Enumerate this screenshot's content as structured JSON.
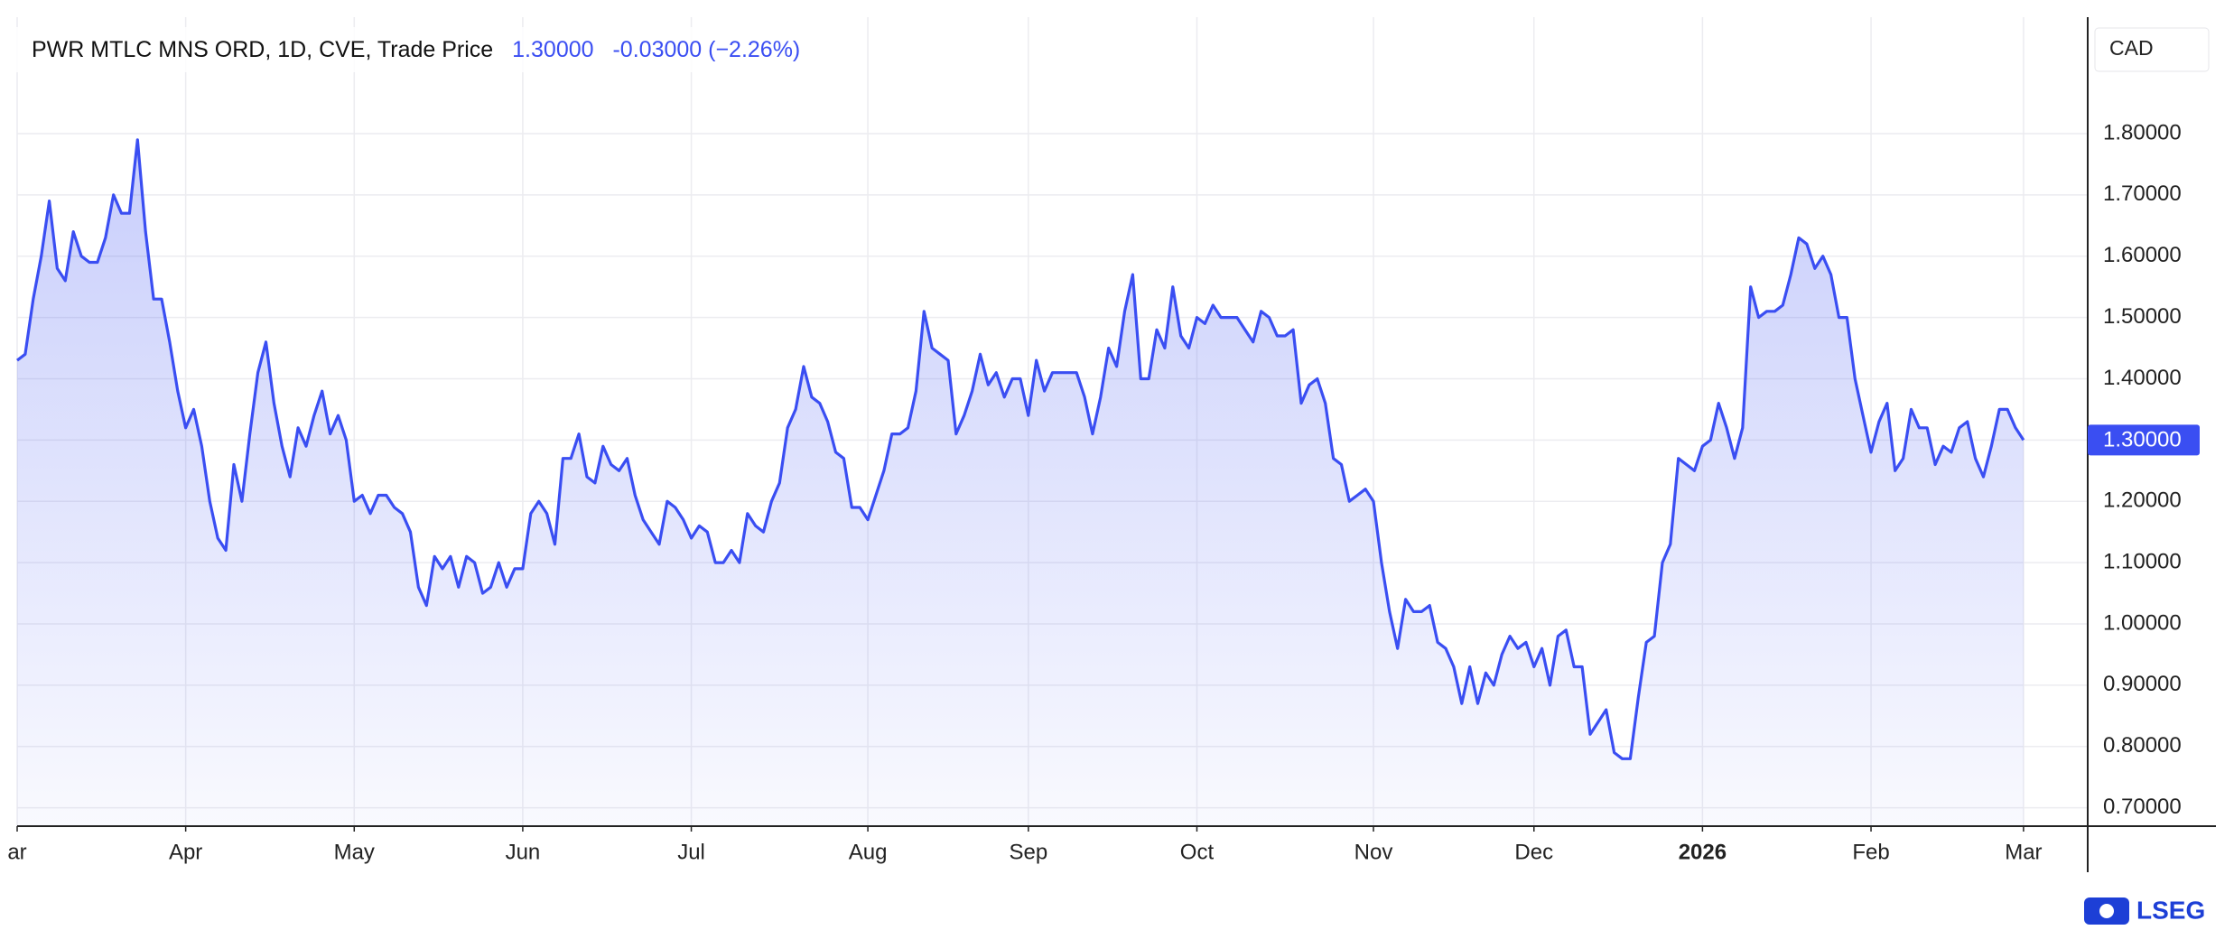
{
  "chart_data": {
    "type": "area",
    "header": {
      "instrument": "PWR MTLC MNS ORD, 1D, CVE, Trade Price",
      "price": "1.30000",
      "change": "-0.03000 (−2.26%)"
    },
    "currency": "CAD",
    "brand": "LSEG",
    "last_price": {
      "value": 1.3,
      "label": "1.30000"
    },
    "color": "#3a4ef2",
    "values": [
      1.43,
      1.44,
      1.53,
      1.6,
      1.69,
      1.58,
      1.56,
      1.64,
      1.6,
      1.59,
      1.59,
      1.63,
      1.7,
      1.67,
      1.67,
      1.79,
      1.64,
      1.53,
      1.53,
      1.46,
      1.38,
      1.32,
      1.35,
      1.29,
      1.2,
      1.14,
      1.12,
      1.26,
      1.2,
      1.31,
      1.41,
      1.46,
      1.36,
      1.29,
      1.24,
      1.32,
      1.29,
      1.34,
      1.38,
      1.31,
      1.34,
      1.3,
      1.2,
      1.21,
      1.18,
      1.21,
      1.21,
      1.19,
      1.18,
      1.15,
      1.06,
      1.03,
      1.11,
      1.09,
      1.11,
      1.06,
      1.11,
      1.1,
      1.05,
      1.06,
      1.1,
      1.06,
      1.09,
      1.09,
      1.18,
      1.2,
      1.18,
      1.13,
      1.27,
      1.27,
      1.31,
      1.24,
      1.23,
      1.29,
      1.26,
      1.25,
      1.27,
      1.21,
      1.17,
      1.15,
      1.13,
      1.2,
      1.19,
      1.17,
      1.14,
      1.16,
      1.15,
      1.1,
      1.1,
      1.12,
      1.1,
      1.18,
      1.16,
      1.15,
      1.2,
      1.23,
      1.32,
      1.35,
      1.42,
      1.37,
      1.36,
      1.33,
      1.28,
      1.27,
      1.19,
      1.19,
      1.17,
      1.21,
      1.25,
      1.31,
      1.31,
      1.32,
      1.38,
      1.51,
      1.45,
      1.44,
      1.43,
      1.31,
      1.34,
      1.38,
      1.44,
      1.39,
      1.41,
      1.37,
      1.4,
      1.4,
      1.34,
      1.43,
      1.38,
      1.41,
      1.41,
      1.41,
      1.41,
      1.37,
      1.31,
      1.37,
      1.45,
      1.42,
      1.51,
      1.57,
      1.4,
      1.4,
      1.48,
      1.45,
      1.55,
      1.47,
      1.45,
      1.5,
      1.49,
      1.52,
      1.5,
      1.5,
      1.5,
      1.48,
      1.46,
      1.51,
      1.5,
      1.47,
      1.47,
      1.48,
      1.36,
      1.39,
      1.4,
      1.36,
      1.27,
      1.26,
      1.2,
      1.21,
      1.22,
      1.2,
      1.1,
      1.02,
      0.96,
      1.04,
      1.02,
      1.02,
      1.03,
      0.97,
      0.96,
      0.93,
      0.87,
      0.93,
      0.87,
      0.92,
      0.9,
      0.95,
      0.98,
      0.96,
      0.97,
      0.93,
      0.96,
      0.9,
      0.98,
      0.99,
      0.93,
      0.93,
      0.82,
      0.84,
      0.86,
      0.79,
      0.78,
      0.78,
      0.88,
      0.97,
      0.98,
      1.1,
      1.13,
      1.27,
      1.26,
      1.25,
      1.29,
      1.3,
      1.36,
      1.32,
      1.27,
      1.32,
      1.55,
      1.5,
      1.51,
      1.51,
      1.52,
      1.57,
      1.63,
      1.62,
      1.58,
      1.6,
      1.57,
      1.5,
      1.5,
      1.4,
      1.34,
      1.28,
      1.33,
      1.36,
      1.25,
      1.27,
      1.35,
      1.32,
      1.32,
      1.26,
      1.29,
      1.28,
      1.32,
      1.33,
      1.27,
      1.24,
      1.29,
      1.35,
      1.35,
      1.32,
      1.3
    ],
    "xlim": [
      0,
      258
    ],
    "xticks": [
      {
        "value": 0,
        "label": "ar"
      },
      {
        "value": 21,
        "label": "Apr"
      },
      {
        "value": 42,
        "label": "May"
      },
      {
        "value": 63,
        "label": "Jun"
      },
      {
        "value": 84,
        "label": "Jul"
      },
      {
        "value": 106,
        "label": "Aug"
      },
      {
        "value": 126,
        "label": "Sep"
      },
      {
        "value": 147,
        "label": "Oct"
      },
      {
        "value": 169,
        "label": "Nov"
      },
      {
        "value": 189,
        "label": "Dec"
      },
      {
        "value": 210,
        "label": "2026",
        "bold": true
      },
      {
        "value": 231,
        "label": "Feb"
      },
      {
        "value": 250,
        "label": "Mar"
      }
    ],
    "ylim": [
      0.67,
      1.99
    ],
    "yticks": [
      {
        "value": 0.7,
        "label": "0.70000"
      },
      {
        "value": 0.8,
        "label": "0.80000"
      },
      {
        "value": 0.9,
        "label": "0.90000"
      },
      {
        "value": 1.0,
        "label": "1.00000"
      },
      {
        "value": 1.1,
        "label": "1.10000"
      },
      {
        "value": 1.2,
        "label": "1.20000"
      },
      {
        "value": 1.3,
        "label": "1.30000"
      },
      {
        "value": 1.4,
        "label": "1.40000"
      },
      {
        "value": 1.5,
        "label": "1.50000"
      },
      {
        "value": 1.6,
        "label": "1.60000"
      },
      {
        "value": 1.7,
        "label": "1.70000"
      },
      {
        "value": 1.8,
        "label": "1.80000"
      }
    ],
    "grid": true
  }
}
